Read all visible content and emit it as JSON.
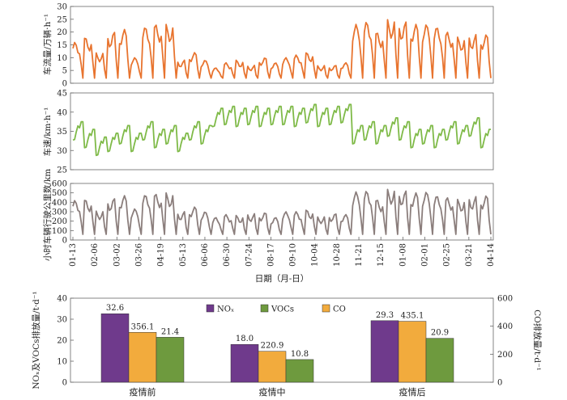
{
  "chart_data": [
    {
      "type": "line",
      "ylabel": "车流量/万辆·h⁻¹",
      "ylim": [
        0,
        30
      ],
      "yticks": [
        0,
        5,
        10,
        15,
        20,
        25,
        30
      ],
      "color": "#e8742f",
      "grid": false,
      "x_range": [
        "01-13",
        "04-14"
      ],
      "series": [
        {
          "period_values": [
            [
              16,
              18,
              12,
              20,
              21,
              10,
              22,
              23,
              23,
              9,
              12,
              9
            ],
            [
              6,
              8,
              9,
              7,
              10,
              8,
              10,
              11,
              12,
              7,
              7,
              8
            ],
            [
              23,
              24,
              20,
              25,
              24,
              23,
              23,
              22,
              20,
              18,
              19,
              19
            ]
          ],
          "weekend_dip": 2
        }
      ]
    },
    {
      "type": "line",
      "ylabel": "车速/km·h⁻¹",
      "ylim": [
        25,
        45
      ],
      "yticks": [
        25,
        30,
        35,
        40,
        45
      ],
      "color": "#7fba48",
      "grid": false,
      "x_range": [
        "01-13",
        "04-14"
      ],
      "series": [
        {
          "period_values": [
            [
              36,
              34,
              32,
              33,
              35,
              33,
              36,
              34,
              35,
              33,
              36,
              35
            ],
            [
              39.5,
              40,
              39.5,
              40,
              39.5,
              40,
              40,
              39.5,
              40.5,
              39.5,
              40,
              40.5
            ],
            [
              35,
              36,
              35,
              37,
              36,
              34,
              35,
              34,
              36,
              35,
              37,
              34
            ]
          ]
        }
      ]
    },
    {
      "type": "line",
      "ylabel": "小时车辆行驶公里数/km",
      "ylim": [
        0,
        600
      ],
      "yticks": [
        0,
        100,
        200,
        300,
        400,
        500,
        600
      ],
      "color": "#8b7e7c",
      "grid": false,
      "x_range": [
        "01-13",
        "04-14"
      ],
      "series": [
        {
          "period_values": [
            [
              420,
              430,
              310,
              440,
              470,
              330,
              480,
              490,
              500,
              300,
              350,
              300
            ],
            [
              240,
              270,
              260,
              280,
              290,
              240,
              300,
              300,
              320,
              250,
              280,
              270
            ],
            [
              510,
              520,
              430,
              540,
              520,
              500,
              510,
              470,
              450,
              430,
              460,
              470
            ]
          ],
          "weekend_dip": 60
        }
      ]
    },
    {
      "type": "bar",
      "categories": [
        "疫情前",
        "疫情中",
        "疫情后"
      ],
      "series": [
        {
          "name": "NOₓ",
          "values": [
            32.6,
            18.0,
            29.3
          ],
          "axis": "left",
          "color": "#6f3a8c"
        },
        {
          "name": "VOCs",
          "values": [
            21.4,
            10.8,
            20.9
          ],
          "axis": "left",
          "color": "#6e9a3e"
        },
        {
          "name": "CO",
          "values": [
            356.1,
            220.9,
            435.1
          ],
          "axis": "right",
          "color": "#f2ab3d"
        }
      ],
      "bar_order": [
        "NOₓ",
        "CO",
        "VOCs"
      ],
      "ylabel_left": "NOₓ及VOCs排放量/t·d⁻¹",
      "ylabel_right": "CO排放量/t·d⁻¹",
      "ylim_left": [
        0,
        40
      ],
      "ylim_right": [
        0,
        600
      ],
      "yticks_left": [
        0,
        10,
        20,
        30,
        40
      ],
      "yticks_right": [
        0,
        200,
        400,
        600
      ],
      "legend_position": "top"
    }
  ],
  "xaxis": {
    "title": "日期（月-日）",
    "ticks": [
      "01-13",
      "02-06",
      "03-02",
      "03-26",
      "04-19",
      "05-13",
      "06-06",
      "06-30",
      "07-24",
      "08-17",
      "09-10",
      "10-04",
      "10-28",
      "11-21",
      "12-15",
      "01-08",
      "02-01",
      "02-25",
      "03-21",
      "04-14"
    ]
  }
}
